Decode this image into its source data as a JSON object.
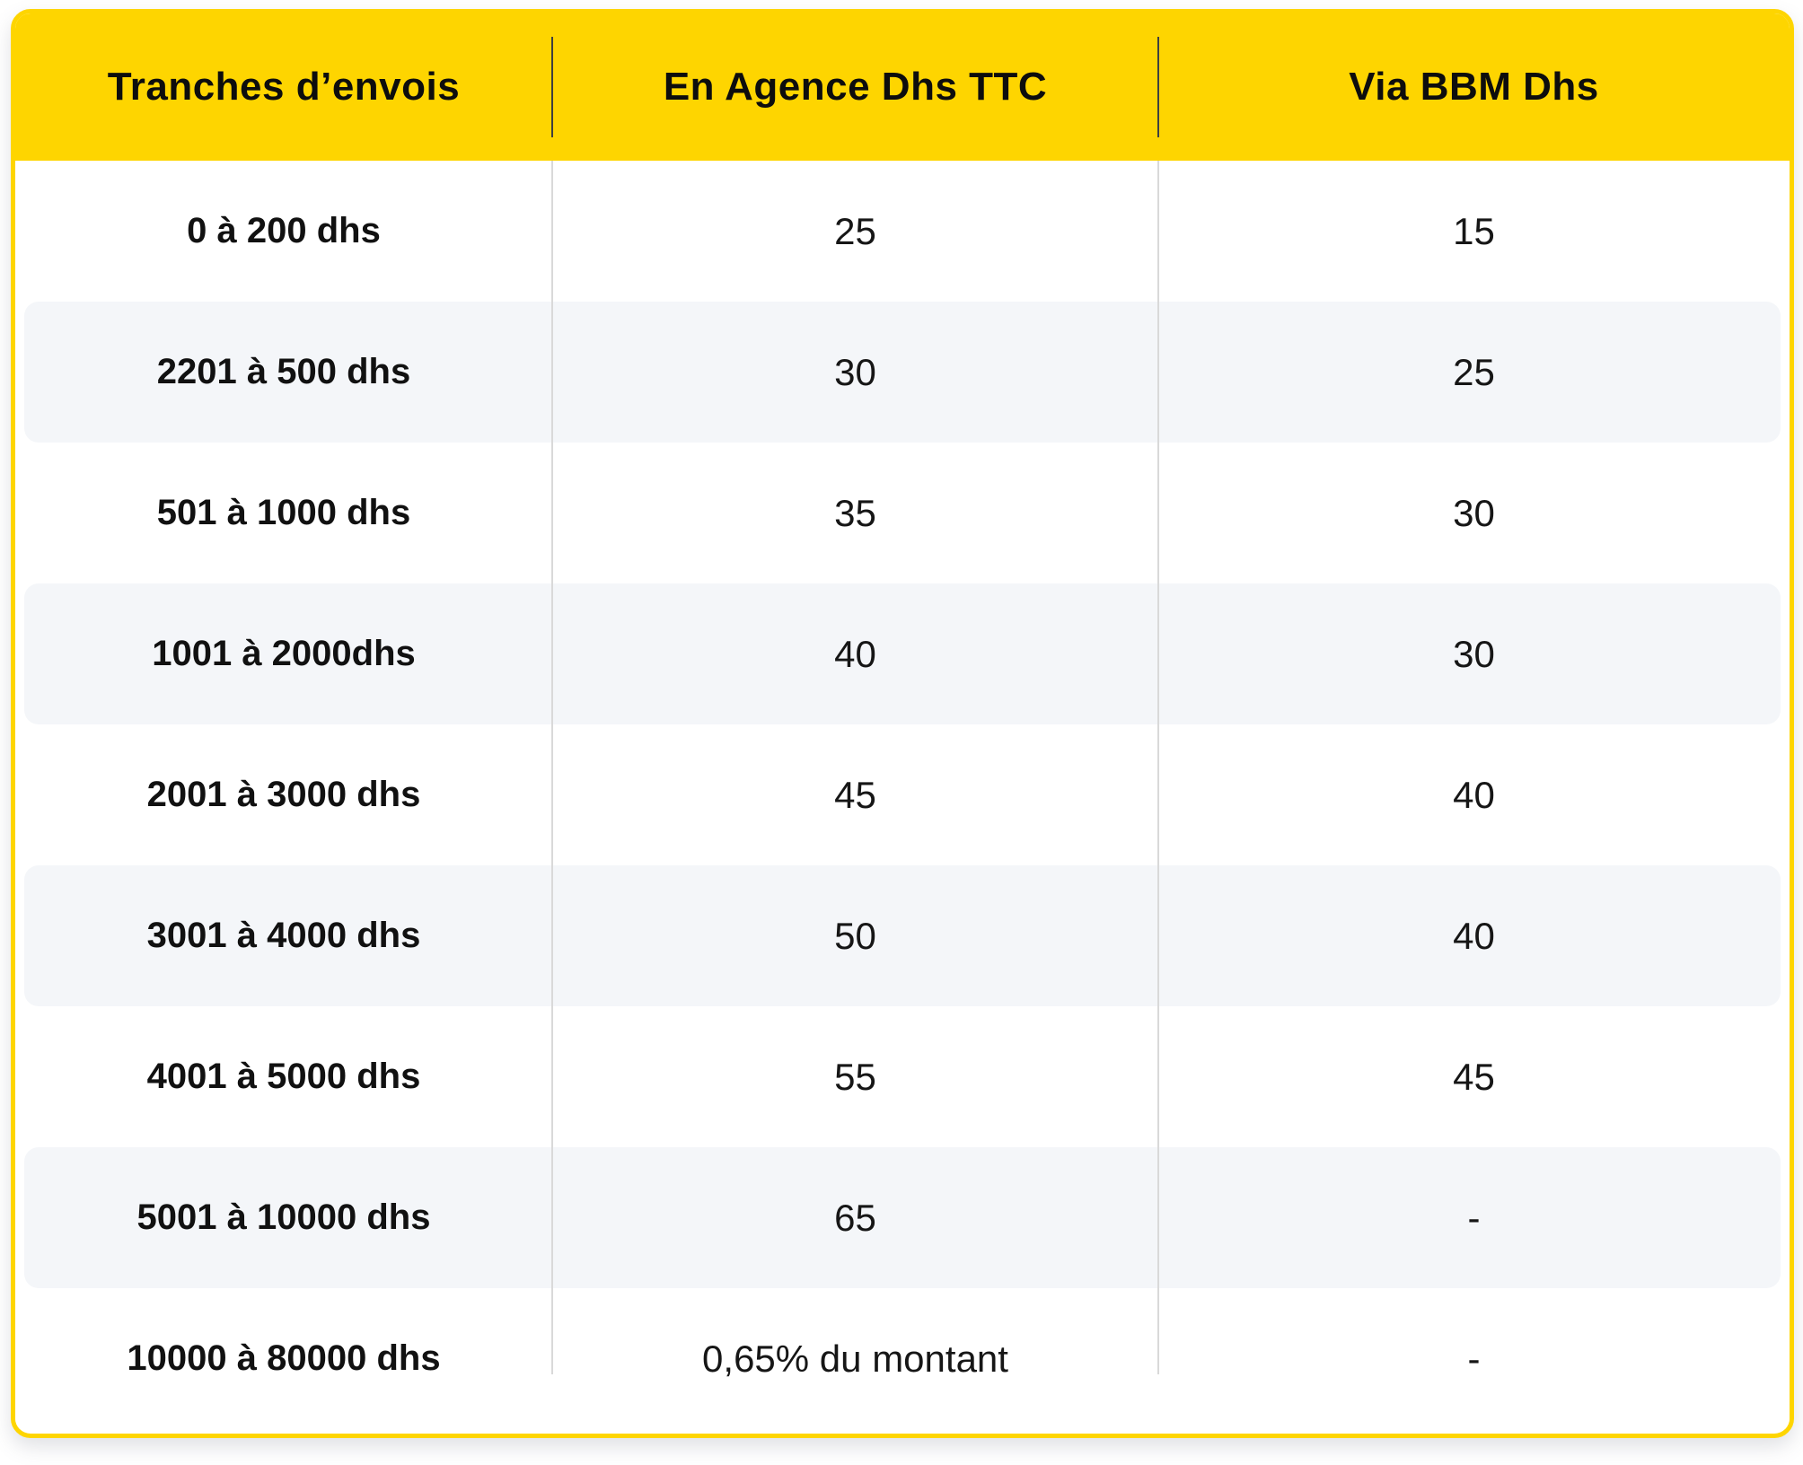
{
  "table": {
    "columns": [
      {
        "label": "Tranches d’envois"
      },
      {
        "label": "En Agence Dhs TTC"
      },
      {
        "label": "Via BBM Dhs"
      }
    ],
    "rows": [
      {
        "tranche": "0 à 200 dhs",
        "agence": "25",
        "bbm": "15"
      },
      {
        "tranche": "2201 à 500 dhs",
        "agence": "30",
        "bbm": "25"
      },
      {
        "tranche": "501 à 1000 dhs",
        "agence": "35",
        "bbm": "30"
      },
      {
        "tranche": "1001 à 2000dhs",
        "agence": "40",
        "bbm": "30"
      },
      {
        "tranche": "2001 à 3000 dhs",
        "agence": "45",
        "bbm": "40"
      },
      {
        "tranche": "3001 à 4000 dhs",
        "agence": "50",
        "bbm": "40"
      },
      {
        "tranche": "4001 à 5000 dhs",
        "agence": "55",
        "bbm": "45"
      },
      {
        "tranche": "5001 à 10000 dhs",
        "agence": "65",
        "bbm": "-"
      },
      {
        "tranche": "10000 à 80000 dhs",
        "agence": "0,65% du montant",
        "bbm": "-"
      }
    ]
  },
  "colors": {
    "header_bg": "#FED500",
    "card_border": "#FED500",
    "stripe_bg": "#F4F6F9",
    "header_text": "#0d0d0d",
    "label_text": "#111111",
    "value_text": "#161616",
    "divider_header": "#3f3f3f",
    "divider_body": "#d9d9d9"
  }
}
